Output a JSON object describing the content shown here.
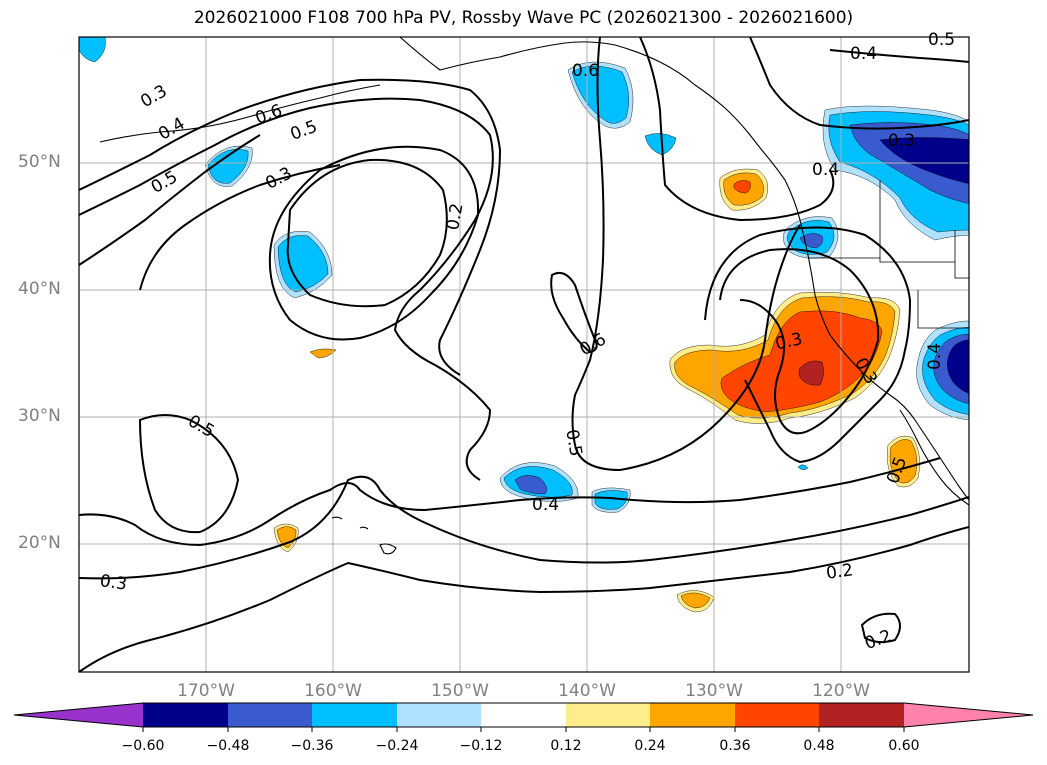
{
  "title": "2026021000 F108 700 hPa PV, Rossby Wave PC (2026021300 - 2026021600)",
  "map": {
    "projection": "PlateCarree",
    "lon_range": [
      -180,
      -110
    ],
    "lat_range": [
      10,
      60
    ],
    "lat_labels": [
      "50°N",
      "40°N",
      "30°N",
      "20°N"
    ],
    "lon_labels": [
      "170°W",
      "160°W",
      "150°W",
      "140°W",
      "130°W",
      "120°W"
    ],
    "contour_labels": [
      "0.3",
      "0.4",
      "0.5",
      "0.6",
      "0.5",
      "0.3",
      "0.2",
      "0.6",
      "0.4",
      "0.5",
      "0.6",
      "0.5",
      "0.4",
      "0.3",
      "0.3",
      "0.4",
      "0.3",
      "0.4",
      "0.5",
      "0.5",
      "0.2",
      "0.3",
      "0.2"
    ]
  },
  "colorbar": {
    "ticks": [
      "−0.60",
      "−0.48",
      "−0.36",
      "−0.24",
      "−0.12",
      "0.12",
      "0.24",
      "0.36",
      "0.48",
      "0.60"
    ],
    "colors": [
      "#9932cc",
      "#00008b",
      "#3a5bcf",
      "#00bfff",
      "#b0e2ff",
      "#ffffff",
      "#ffec8b",
      "#ffa500",
      "#ff4500",
      "#b22222",
      "#ff82ab"
    ]
  },
  "colors": {
    "c_n060": "#00008b",
    "c_n048": "#3a5bcf",
    "c_n036": "#00bfff",
    "c_n024": "#b0e2ff",
    "c_p012": "#ffec8b",
    "c_p024": "#ffa500",
    "c_p036": "#ff4500",
    "c_p048": "#b22222"
  }
}
